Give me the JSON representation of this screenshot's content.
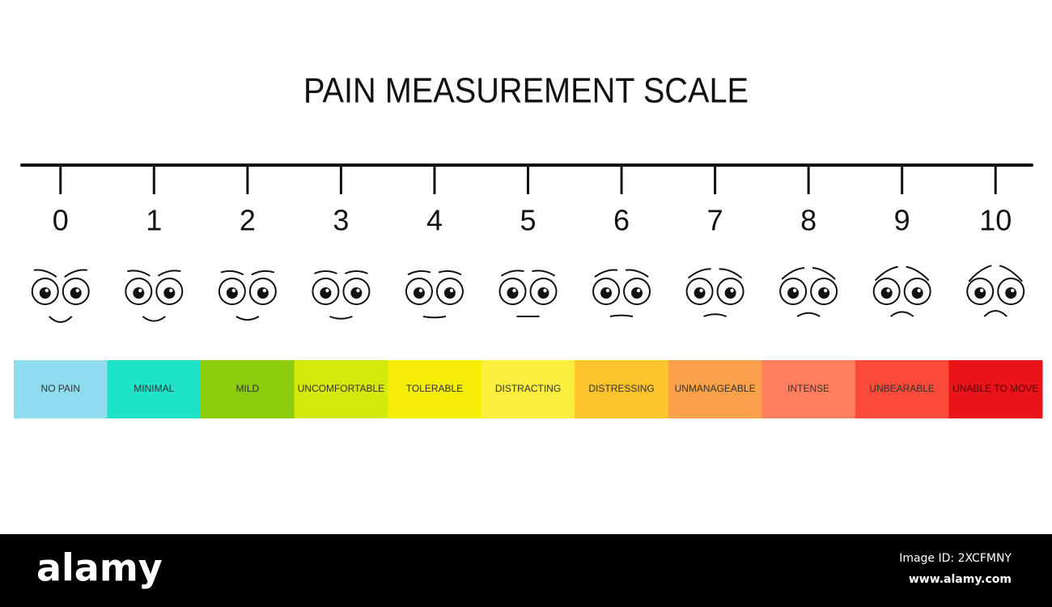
{
  "header": {
    "title": "PAIN MEASUREMENT SCALE"
  },
  "scale": {
    "levels": [
      {
        "number": "0",
        "label": "NO PAIN",
        "color": "#8fdcef"
      },
      {
        "number": "1",
        "label": "MINIMAL",
        "color": "#1ee3c9"
      },
      {
        "number": "2",
        "label": "MILD",
        "color": "#8dcc0c"
      },
      {
        "number": "3",
        "label": "UNCOMFORTABLE",
        "color": "#d4e80c"
      },
      {
        "number": "4",
        "label": "TOLERABLE",
        "color": "#f4ee06"
      },
      {
        "number": "5",
        "label": "DISTRACTING",
        "color": "#fbee3c"
      },
      {
        "number": "6",
        "label": "DISTRESSING",
        "color": "#fcc42b"
      },
      {
        "number": "7",
        "label": "UNMANAGEABLE",
        "color": "#fba14a"
      },
      {
        "number": "8",
        "label": "INTENSE",
        "color": "#ff7f5f"
      },
      {
        "number": "9",
        "label": "UNBEARABLE",
        "color": "#f94a3a"
      },
      {
        "number": "10",
        "label": "UNABLE TO MOVE",
        "color": "#e8141a"
      }
    ]
  },
  "footer": {
    "brand": "alamy",
    "image_id": "Image ID: 2XCFMNY",
    "url": "www.alamy.com"
  }
}
